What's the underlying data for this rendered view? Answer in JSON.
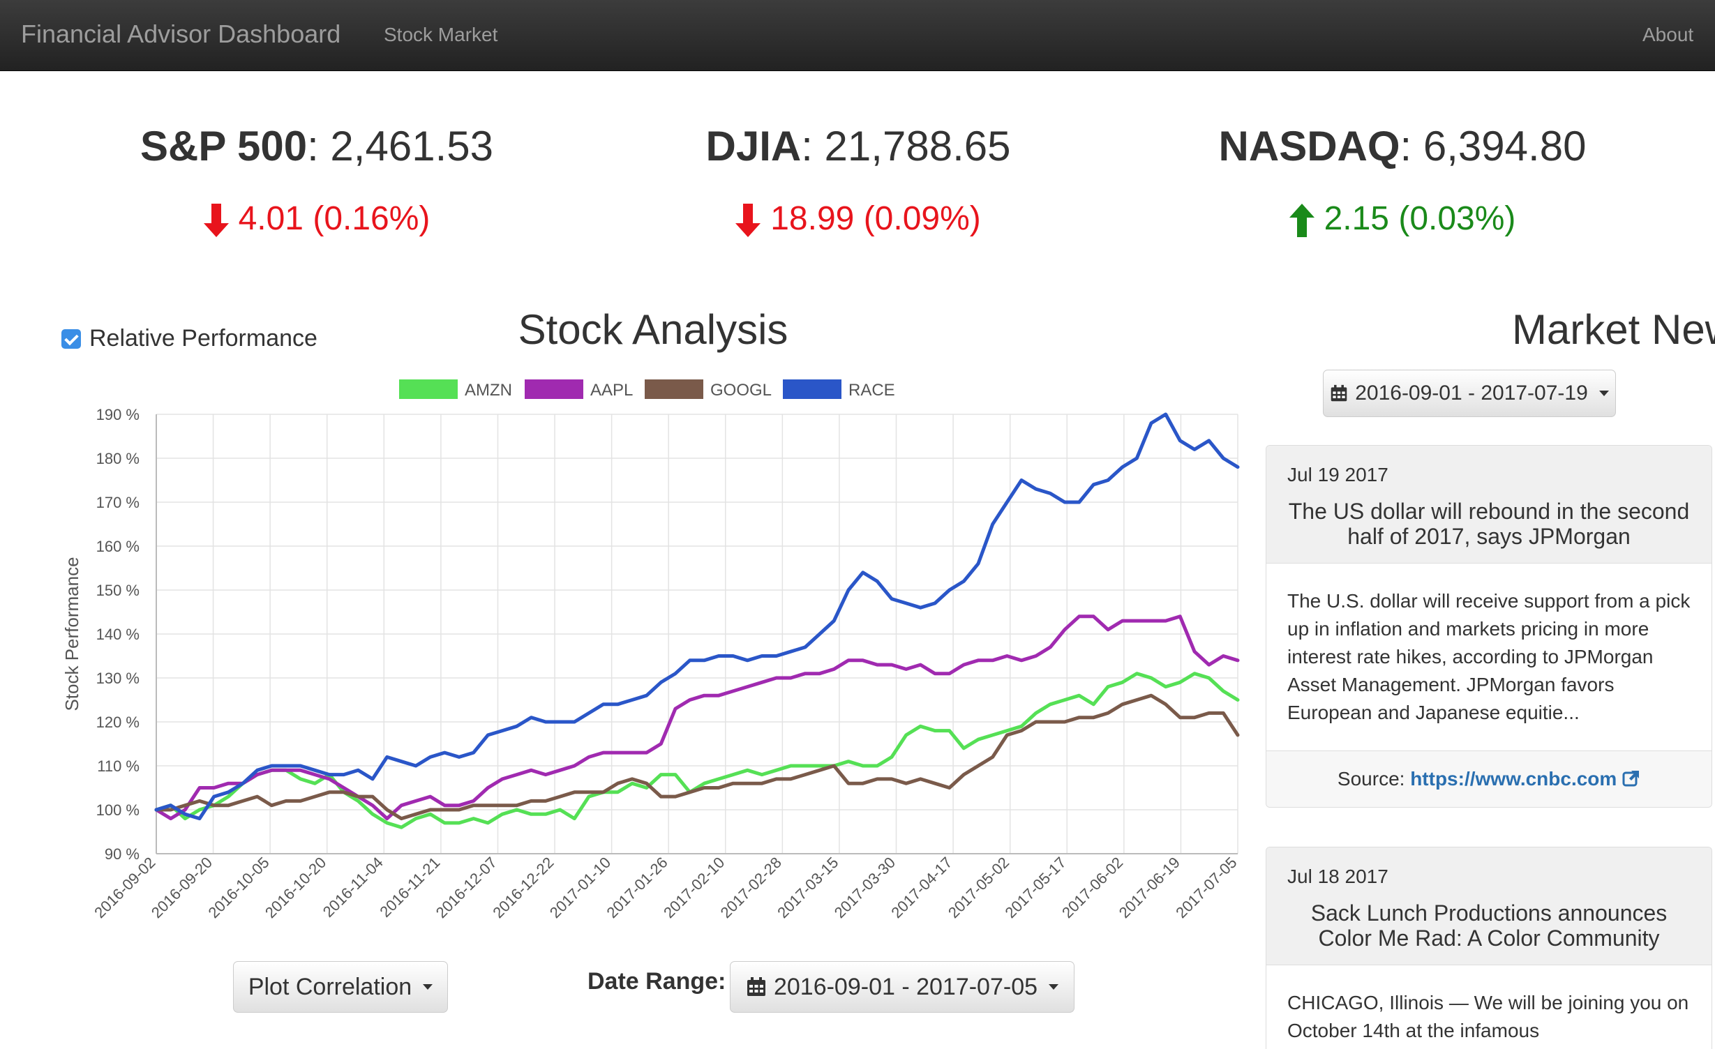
{
  "navbar": {
    "brand": "Financial Advisor Dashboard",
    "stock_market": "Stock Market",
    "about": "About"
  },
  "indices": [
    {
      "name": "S&P 500",
      "value": "2,461.53",
      "change": "4.01 (0.16%)",
      "direction": "down"
    },
    {
      "name": "DJIA",
      "value": "21,788.65",
      "change": "18.99 (0.09%)",
      "direction": "down"
    },
    {
      "name": "NASDAQ",
      "value": "6,394.80",
      "change": "2.15 (0.03%)",
      "direction": "up"
    }
  ],
  "analysis": {
    "relative_label": "Relative Performance",
    "relative_checked": true,
    "title": "Stock Analysis",
    "plot_button": "Plot Correlation",
    "date_range_label": "Date Range:",
    "date_range_value": "2016-09-01 - 2017-07-05"
  },
  "chart_data": {
    "type": "line",
    "title": "",
    "ylabel": "Stock Performance",
    "xlabel": "",
    "ylim": [
      90,
      190
    ],
    "y_tick_values": [
      90,
      100,
      110,
      120,
      130,
      140,
      150,
      160,
      170,
      180,
      190
    ],
    "y_tick_suffix": " %",
    "x_tick_labels": [
      "2016-09-02",
      "2016-09-20",
      "2016-10-05",
      "2016-10-20",
      "2016-11-04",
      "2016-11-21",
      "2016-12-07",
      "2016-12-22",
      "2017-01-10",
      "2017-01-26",
      "2017-02-10",
      "2017-02-28",
      "2017-03-15",
      "2017-03-30",
      "2017-04-17",
      "2017-05-02",
      "2017-05-17",
      "2017-06-02",
      "2017-06-19",
      "2017-07-05"
    ],
    "grid": true,
    "legend_position": "top",
    "series": [
      {
        "name": "AMZN",
        "color": "#55e055",
        "values": [
          100,
          101,
          98,
          100,
          101,
          103,
          106,
          108,
          109,
          109,
          107,
          106,
          108,
          104,
          102,
          99,
          97,
          96,
          98,
          99,
          97,
          97,
          98,
          97,
          99,
          100,
          99,
          99,
          100,
          98,
          103,
          104,
          104,
          106,
          105,
          108,
          108,
          104,
          106,
          107,
          108,
          109,
          108,
          109,
          110,
          110,
          110,
          110,
          111,
          110,
          110,
          112,
          117,
          119,
          118,
          118,
          114,
          116,
          117,
          118,
          119,
          122,
          124,
          125,
          126,
          124,
          128,
          129,
          131,
          130,
          128,
          129,
          131,
          130,
          127,
          125
        ]
      },
      {
        "name": "AAPL",
        "color": "#a02ab0",
        "values": [
          100,
          98,
          100,
          105,
          105,
          106,
          106,
          108,
          109,
          109,
          109,
          108,
          107,
          105,
          103,
          101,
          98,
          101,
          102,
          103,
          101,
          101,
          102,
          105,
          107,
          108,
          109,
          108,
          109,
          110,
          112,
          113,
          113,
          113,
          113,
          115,
          123,
          125,
          126,
          126,
          127,
          128,
          129,
          130,
          130,
          131,
          131,
          132,
          134,
          134,
          133,
          133,
          132,
          133,
          131,
          131,
          133,
          134,
          134,
          135,
          134,
          135,
          137,
          141,
          144,
          144,
          141,
          143,
          143,
          143,
          143,
          144,
          136,
          133,
          135,
          134
        ]
      },
      {
        "name": "GOOGL",
        "color": "#7a5a4a",
        "values": [
          100,
          100,
          101,
          102,
          101,
          101,
          102,
          103,
          101,
          102,
          102,
          103,
          104,
          104,
          103,
          103,
          100,
          98,
          99,
          100,
          100,
          100,
          101,
          101,
          101,
          101,
          102,
          102,
          103,
          104,
          104,
          104,
          106,
          107,
          106,
          103,
          103,
          104,
          105,
          105,
          106,
          106,
          106,
          107,
          107,
          108,
          109,
          110,
          106,
          106,
          107,
          107,
          106,
          107,
          106,
          105,
          108,
          110,
          112,
          117,
          118,
          120,
          120,
          120,
          121,
          121,
          122,
          124,
          125,
          126,
          124,
          121,
          121,
          122,
          122,
          117
        ]
      },
      {
        "name": "RACE",
        "color": "#2a56c8",
        "values": [
          100,
          101,
          99,
          98,
          103,
          104,
          106,
          109,
          110,
          110,
          110,
          109,
          108,
          108,
          109,
          107,
          112,
          111,
          110,
          112,
          113,
          112,
          113,
          117,
          118,
          119,
          121,
          120,
          120,
          120,
          122,
          124,
          124,
          125,
          126,
          129,
          131,
          134,
          134,
          135,
          135,
          134,
          135,
          135,
          136,
          137,
          140,
          143,
          150,
          154,
          152,
          148,
          147,
          146,
          147,
          150,
          152,
          156,
          165,
          170,
          175,
          173,
          172,
          170,
          170,
          174,
          175,
          178,
          180,
          188,
          190,
          184,
          182,
          184,
          180,
          178
        ]
      }
    ]
  },
  "news": {
    "title": "Market News",
    "date_range": "2016-09-01 - 2017-07-19",
    "source_label": "Source:",
    "articles": [
      {
        "date": "Jul 19 2017",
        "title": "The US dollar will rebound in the second half of 2017, says JPMorgan",
        "body": "The U.S. dollar will receive support from a pick up in inflation and markets pricing in more interest rate hikes, according to JPMorgan Asset Management. JPMorgan favors European and Japanese equitie...",
        "source": "https://www.cnbc.com"
      },
      {
        "date": "Jul 18 2017",
        "title": "Sack Lunch Productions announces Color Me Rad: A Color Community",
        "body": "CHICAGO, Illinois — We will be joining you on October 14th at the infamous",
        "source": ""
      }
    ]
  },
  "colors": {
    "down": "#e8141c",
    "up": "#1a8a1a",
    "link": "#2a6fb0",
    "checkbox": "#3a8ee6"
  }
}
